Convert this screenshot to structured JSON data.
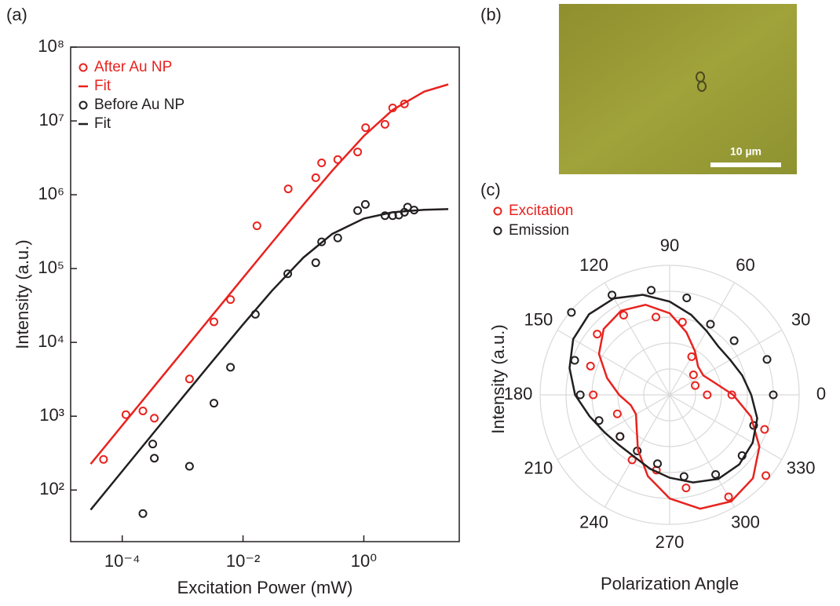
{
  "chart_data": [
    {
      "type": "scatter",
      "panel_label": "(a)",
      "xlabel": "Excitation Power (mW)",
      "ylabel": "Intensity (a.u.)",
      "xscale": "log",
      "yscale": "log",
      "xlim": [
        1.4e-05,
        38
      ],
      "ylim": [
        20,
        100000000
      ],
      "xticks": [
        {
          "value": 0.0001,
          "label": "10⁻⁴"
        },
        {
          "value": 0.01,
          "label": "10⁻²"
        },
        {
          "value": 1,
          "label": "10⁰"
        }
      ],
      "yticks": [
        {
          "value": 100,
          "label": "10²"
        },
        {
          "value": 1000,
          "label": "10³"
        },
        {
          "value": 10000,
          "label": "10⁴"
        },
        {
          "value": 100000,
          "label": "10⁵"
        },
        {
          "value": 1000000,
          "label": "10⁶"
        },
        {
          "value": 10000000,
          "label": "10⁷"
        },
        {
          "value": 100000000,
          "label": "10⁸"
        }
      ],
      "legend": "upper left",
      "series": [
        {
          "name": "After Au NP",
          "style": "markers",
          "color": "#e8231f",
          "x": [
            4.9e-05,
            0.000115,
            0.00022,
            0.00034,
            0.0013,
            0.0033,
            0.0062,
            0.017,
            0.056,
            0.16,
            0.2,
            0.37,
            0.79,
            1.07,
            2.24,
            3.0,
            4.7
          ],
          "values": [
            260,
            1050,
            1180,
            940,
            3200,
            19000,
            38000,
            380000,
            1200000,
            1700000,
            2700000,
            3000000,
            3800000,
            8100000,
            9000000,
            15000000,
            17000000
          ]
        },
        {
          "name": "Fit",
          "style": "line",
          "color": "#e8231f",
          "x": [
            3e-05,
            0.0001,
            0.0003,
            0.001,
            0.003,
            0.01,
            0.03,
            0.1,
            0.3,
            1,
            3,
            10,
            25
          ],
          "values": [
            225,
            750,
            2250,
            7500,
            22500,
            74850,
            223700,
            735000,
            2120000,
            6250000,
            14100000,
            25000000,
            31250000
          ]
        },
        {
          "name": "Before Au NP",
          "style": "markers",
          "color": "#231f20",
          "x": [
            0.00022,
            0.00032,
            0.00034,
            0.0013,
            0.0033,
            0.0062,
            0.016,
            0.055,
            0.16,
            0.2,
            0.37,
            0.79,
            1.06,
            2.24,
            3.0,
            3.8,
            4.7,
            5.3,
            6.8
          ],
          "values": [
            48,
            420,
            270,
            210,
            1500,
            4600,
            24000,
            85000,
            120000,
            230000,
            260000,
            610000,
            740000,
            520000,
            520000,
            530000,
            580000,
            680000,
            620000
          ]
        },
        {
          "name": "Fit",
          "style": "line",
          "color": "#231f20",
          "x": [
            3e-05,
            0.0001,
            0.0003,
            0.001,
            0.003,
            0.01,
            0.03,
            0.1,
            0.3,
            1,
            3,
            10,
            25
          ],
          "values": [
            54,
            180,
            540,
            1800,
            5350,
            17500,
            49850,
            141000,
            295000,
            476000,
            579000,
            625000,
            639000
          ]
        }
      ]
    },
    {
      "type": "polar",
      "panel_label": "(c)",
      "xlabel": "Polarization Angle",
      "ylabel": "Intensity (a.u.)",
      "rlim": [
        0,
        1
      ],
      "rgrid": [
        0.2,
        0.4,
        0.6,
        0.8,
        1
      ],
      "thetaticks": [
        0,
        30,
        60,
        90,
        120,
        150,
        180,
        210,
        240,
        270,
        300,
        330
      ],
      "legend": "upper left",
      "series": [
        {
          "name": "Excitation",
          "style": "markers",
          "color": "#e8231f",
          "theta": [
            0,
            20,
            40,
            60,
            80,
            100,
            120,
            140,
            160,
            180,
            200,
            220,
            240,
            260,
            280,
            300,
            320,
            340,
            360
          ],
          "values": [
            0.29,
            0.21,
            0.24,
            0.34,
            0.57,
            0.61,
            0.71,
            0.73,
            0.65,
            0.59,
            0.43,
            0.5,
            0.58,
            0.59,
            0.73,
            0.91,
            0.97,
            0.78,
            0.48
          ]
        },
        {
          "name": "Emission",
          "style": "markers",
          "color": "#231f20",
          "theta": [
            0,
            20,
            40,
            60,
            80,
            100,
            120,
            140,
            160,
            180,
            200,
            220,
            240,
            260,
            280,
            300,
            320,
            340
          ],
          "values": [
            0.8,
            0.8,
            0.65,
            0.63,
            0.76,
            0.82,
            0.89,
            0.99,
            0.78,
            0.69,
            0.58,
            0.5,
            0.5,
            0.54,
            0.64,
            0.71,
            0.73,
            0.69
          ]
        },
        {
          "style": "line",
          "color": "#e8231f",
          "theta": [
            0,
            15,
            30,
            45,
            60,
            75,
            90,
            105,
            120,
            135,
            150,
            165,
            180,
            195,
            210,
            225,
            240,
            255,
            270,
            285,
            300,
            315,
            330,
            345,
            360
          ],
          "values": [
            0.49,
            0.36,
            0.3,
            0.31,
            0.39,
            0.5,
            0.63,
            0.72,
            0.75,
            0.72,
            0.63,
            0.5,
            0.39,
            0.31,
            0.3,
            0.36,
            0.49,
            0.65,
            0.8,
            0.91,
            0.95,
            0.91,
            0.8,
            0.65,
            0.49
          ]
        },
        {
          "style": "line",
          "color": "#231f20",
          "theta": [
            0,
            15,
            30,
            45,
            60,
            75,
            90,
            105,
            120,
            135,
            150,
            165,
            180,
            195,
            210,
            225,
            240,
            255,
            270,
            285,
            300,
            315,
            330,
            345,
            360
          ],
          "values": [
            0.63,
            0.58,
            0.54,
            0.53,
            0.57,
            0.64,
            0.72,
            0.8,
            0.86,
            0.88,
            0.86,
            0.8,
            0.73,
            0.64,
            0.58,
            0.55,
            0.55,
            0.59,
            0.64,
            0.7,
            0.75,
            0.76,
            0.74,
            0.7,
            0.63
          ]
        }
      ]
    }
  ],
  "image": {
    "panel_label": "(b)",
    "scale_bar": "10 µm"
  }
}
